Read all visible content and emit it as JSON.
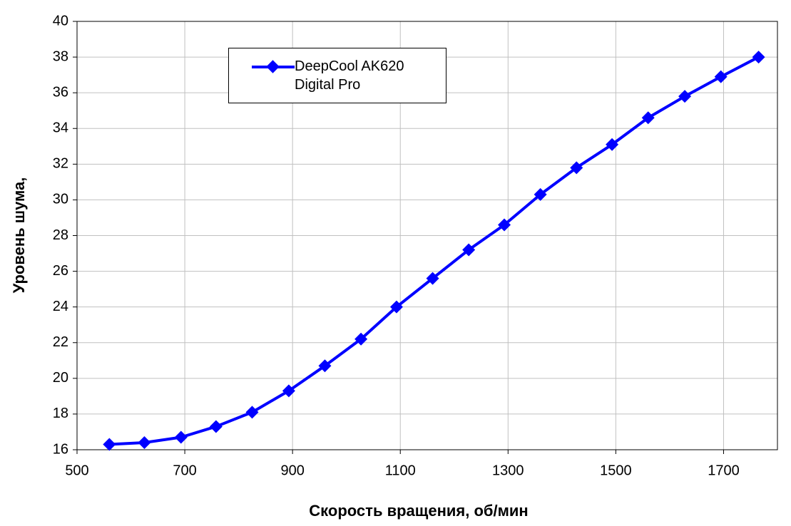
{
  "chart_data": {
    "type": "line",
    "x_label": "Скорость вращения, об/мин",
    "y_label": "Уровень шума,",
    "x": [
      560,
      625,
      693,
      758,
      825,
      893,
      960,
      1027,
      1093,
      1160,
      1227,
      1293,
      1360,
      1427,
      1493,
      1560,
      1628,
      1695,
      1765
    ],
    "series": [
      {
        "name": "DeepCool AK620 Digital Pro",
        "color": "#0000ff",
        "values": [
          16.3,
          16.4,
          16.7,
          17.3,
          18.1,
          19.3,
          20.7,
          22.2,
          24.0,
          25.6,
          27.2,
          28.6,
          30.3,
          31.8,
          33.1,
          34.6,
          35.8,
          36.9,
          38.0
        ]
      }
    ],
    "xlim": [
      500,
      1800
    ],
    "xticks": [
      500,
      700,
      900,
      1100,
      1300,
      1500,
      1700
    ],
    "ylim": [
      16,
      40
    ],
    "yticks": [
      16,
      18,
      20,
      22,
      24,
      26,
      28,
      30,
      32,
      34,
      36,
      38,
      40
    ],
    "grid": true
  }
}
